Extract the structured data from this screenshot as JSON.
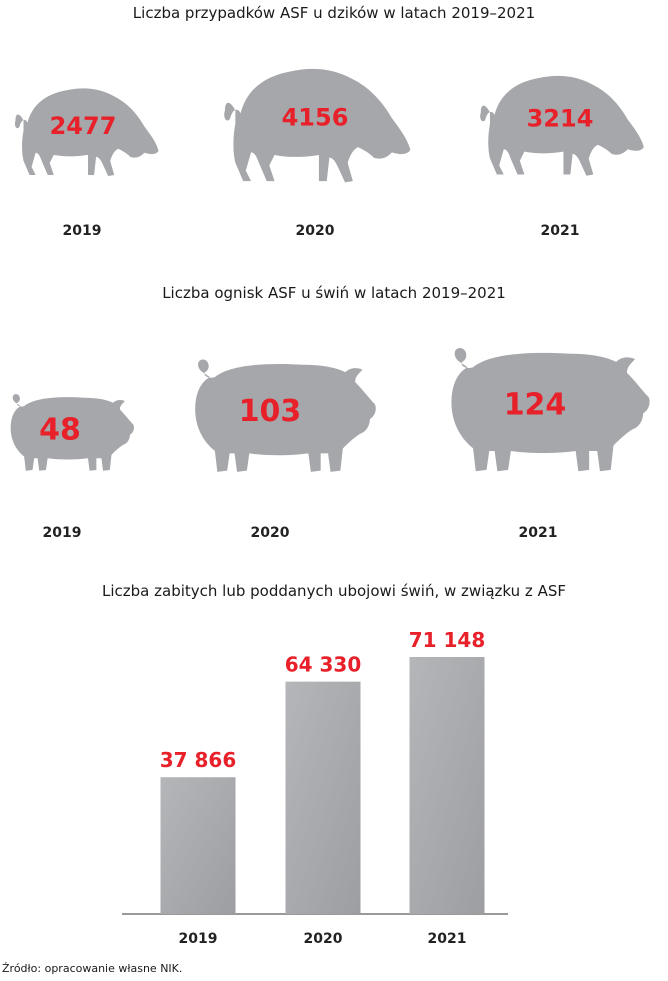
{
  "charts": {
    "boar": {
      "title": "Liczba przypadków ASF u dzików w latach 2019–2021"
    },
    "pig": {
      "title": "Liczba ognisk ASF u świń w latach 2019–2021"
    },
    "bar": {
      "title": "Liczba zabitych lub poddanych ubojowi świń, w związku z ASF"
    }
  },
  "source": "Źródło: opracowanie własne NIK.",
  "colors": {
    "value_red": "#e8202a",
    "animal_gray": "#a5a7aa",
    "bar_gray": "#a8aaad",
    "axis": "#333333"
  },
  "icons": {
    "boar": "wild-boar-icon",
    "pig": "domestic-pig-icon"
  },
  "chart_data": [
    {
      "type": "bar",
      "title": "Liczba przypadków ASF u dzików w latach 2019–2021",
      "categories": [
        "2019",
        "2020",
        "2021"
      ],
      "values": [
        2477,
        4156,
        3214
      ],
      "labels": [
        "2477",
        "4156",
        "3214"
      ],
      "representation": "pictogram size"
    },
    {
      "type": "bar",
      "title": "Liczba ognisk ASF u świń w latach 2019–2021",
      "categories": [
        "2019",
        "2020",
        "2021"
      ],
      "values": [
        48,
        103,
        124
      ],
      "labels": [
        "48",
        "103",
        "124"
      ],
      "representation": "pictogram size"
    },
    {
      "type": "bar",
      "title": "Liczba zabitych lub poddanych ubojowi świń, w związku z ASF",
      "categories": [
        "2019",
        "2020",
        "2021"
      ],
      "values": [
        37866,
        64330,
        71148
      ],
      "labels": [
        "37 866",
        "64 330",
        "71 148"
      ],
      "ylim": [
        0,
        71148
      ],
      "grid": false
    }
  ]
}
